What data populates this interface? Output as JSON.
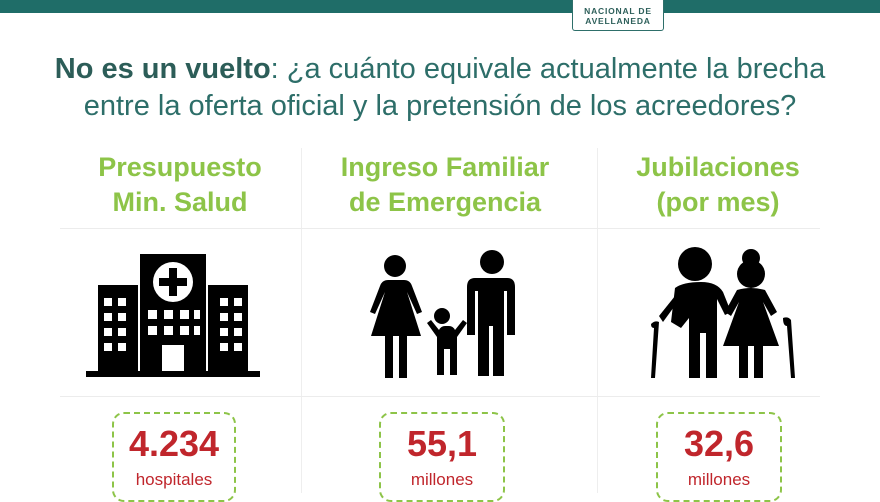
{
  "logo": {
    "line1": "NACIONAL DE",
    "line2": "AVELLANEDA"
  },
  "headline": {
    "bold": "No es un vuelto",
    "rest1": ": ¿a cuánto equivale actualmente la brecha",
    "line2": "entre la oferta oficial y la pretensión de los acreedores?"
  },
  "columns": [
    {
      "title1": "Presupuesto",
      "title2": "Min. Salud",
      "icon": "hospital-icon",
      "value": "4.234",
      "unit": "hospitales"
    },
    {
      "title1": "Ingreso Familiar",
      "title2": "de Emergencia",
      "icon": "family-icon",
      "value": "55,1",
      "unit": "millones"
    },
    {
      "title1": "Jubilaciones",
      "title2": "(por mes)",
      "icon": "elderly-couple-icon",
      "value": "32,6",
      "unit": "millones"
    }
  ],
  "colors": {
    "bar": "#1f6d68",
    "green": "#8dc448",
    "red": "#c0262c",
    "headline": "#2d6e69"
  }
}
